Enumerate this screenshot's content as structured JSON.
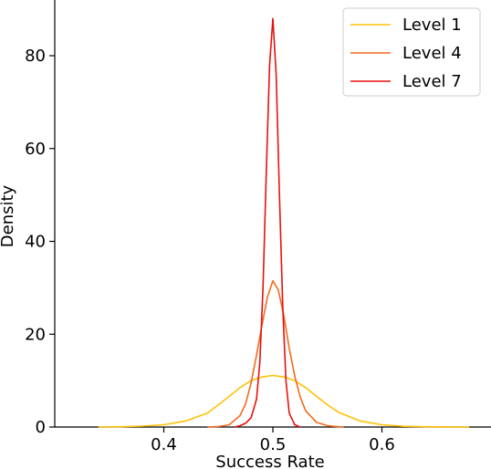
{
  "chart_data": {
    "type": "line",
    "title": "",
    "xlabel": "Success Rate",
    "ylabel": "Density",
    "xlim": [
      0.3,
      0.7
    ],
    "ylim": [
      0,
      92
    ],
    "x_ticks": [
      0.4,
      0.5,
      0.6
    ],
    "y_ticks": [
      0,
      20,
      40,
      60,
      80
    ],
    "grid": false,
    "legend_position": "top-right",
    "series": [
      {
        "name": "Level 1",
        "color": "#ffc107",
        "x": [
          0.34,
          0.36,
          0.38,
          0.4,
          0.42,
          0.44,
          0.45,
          0.46,
          0.47,
          0.48,
          0.49,
          0.5,
          0.51,
          0.52,
          0.53,
          0.54,
          0.55,
          0.56,
          0.58,
          0.6,
          0.62,
          0.64,
          0.66,
          0.68
        ],
        "y": [
          0.0,
          0.05,
          0.2,
          0.5,
          1.3,
          3.0,
          4.8,
          6.6,
          8.5,
          10.0,
          10.8,
          11.1,
          10.8,
          10.0,
          8.5,
          6.6,
          4.8,
          3.2,
          1.3,
          0.5,
          0.15,
          0.05,
          0.0,
          0.0
        ]
      },
      {
        "name": "Level 4",
        "color": "#f26b1d",
        "x": [
          0.44,
          0.45,
          0.46,
          0.47,
          0.475,
          0.48,
          0.485,
          0.49,
          0.495,
          0.5,
          0.505,
          0.51,
          0.515,
          0.52,
          0.525,
          0.53,
          0.54,
          0.55,
          0.56,
          0.565
        ],
        "y": [
          0.0,
          0.1,
          0.5,
          2.5,
          5.0,
          9.5,
          15.5,
          22.0,
          28.0,
          31.5,
          29.5,
          24.0,
          17.0,
          11.0,
          6.5,
          3.5,
          1.0,
          0.3,
          0.05,
          0.0
        ]
      },
      {
        "name": "Level 7",
        "color": "#e8110f",
        "x": [
          0.465,
          0.47,
          0.475,
          0.48,
          0.485,
          0.488,
          0.491,
          0.494,
          0.497,
          0.5,
          0.503,
          0.506,
          0.509,
          0.512,
          0.515,
          0.52,
          0.525
        ],
        "y": [
          0.0,
          0.3,
          0.8,
          2.0,
          6.0,
          14.0,
          30.0,
          55.0,
          78.0,
          88.0,
          76.0,
          50.0,
          26.0,
          10.0,
          3.0,
          0.5,
          0.0
        ]
      }
    ]
  }
}
